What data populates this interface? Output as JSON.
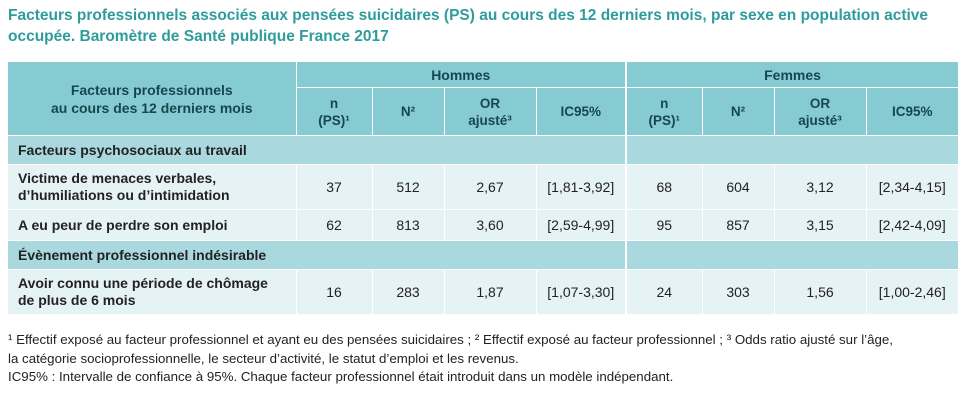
{
  "title": "Facteurs professionnels associés aux pensées suicidaires (PS) au cours des 12 derniers mois, par sexe en population active occupée. Baromètre de Santé publique France 2017",
  "table": {
    "row_header_line1": "Facteurs professionnels",
    "row_header_line2": "au cours des 12 derniers mois",
    "group_men": "Hommes",
    "group_women": "Femmes",
    "cols": {
      "n_line1": "n",
      "n_line2": "(PS)¹",
      "N": "N²",
      "or_line1": "OR",
      "or_line2": "ajusté³",
      "ic": "IC95%"
    },
    "section1": "Facteurs psychosociaux au travail",
    "section2": "Évènement professionnel indésirable",
    "rows": [
      {
        "label_line1": "Victime de menaces verbales,",
        "label_line2": "d’humiliations ou d’intimidation",
        "men": {
          "n": "37",
          "N": "512",
          "or": "2,67",
          "ic": "[1,81-3,92]"
        },
        "women": {
          "n": "68",
          "N": "604",
          "or": "3,12",
          "ic": "[2,34-4,15]"
        }
      },
      {
        "label_line1": "A eu peur de perdre son emploi",
        "label_line2": "",
        "men": {
          "n": "62",
          "N": "813",
          "or": "3,60",
          "ic": "[2,59-4,99]"
        },
        "women": {
          "n": "95",
          "N": "857",
          "or": "3,15",
          "ic": "[2,42-4,09]"
        }
      },
      {
        "label_line1": "Avoir connu une période de chômage",
        "label_line2": "de plus de 6 mois",
        "men": {
          "n": "16",
          "N": "283",
          "or": "1,87",
          "ic": "[1,07-3,30]"
        },
        "women": {
          "n": "24",
          "N": "303",
          "or": "1,56",
          "ic": "[1,00-2,46]"
        }
      }
    ]
  },
  "notes": {
    "line1": "¹ Effectif exposé au facteur professionnel et ayant eu des pensées suicidaires ; ² Effectif exposé au facteur professionnel ; ³ Odds ratio ajusté sur l’âge,",
    "line2": "la catégorie socioprofessionnelle, le secteur d’activité, le statut d’emploi et les revenus.",
    "line3": "IC95% : Intervalle de confiance à 95%. Chaque facteur professionnel était introduit dans un modèle indépendant."
  }
}
